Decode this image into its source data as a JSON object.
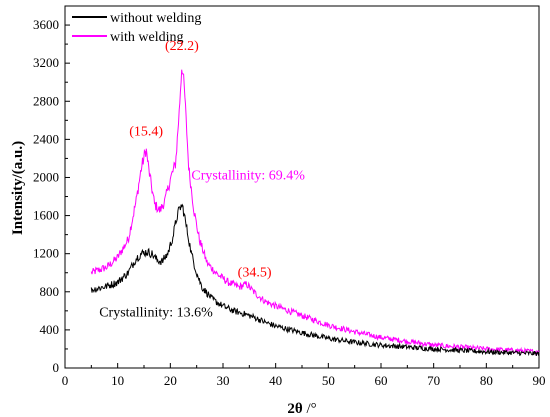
{
  "chart_data": {
    "type": "line",
    "xlabel_main": "2θ",
    "xlabel_unit": " /°",
    "ylabel": "Intensity/(a.u.)",
    "xlim": [
      0,
      90
    ],
    "ylim": [
      0,
      3800
    ],
    "xticks": [
      0,
      10,
      20,
      30,
      40,
      50,
      60,
      70,
      80,
      90
    ],
    "yticks": [
      0,
      400,
      800,
      1200,
      1600,
      2000,
      2400,
      2800,
      3200,
      3600
    ],
    "grid": false,
    "legend_position": "top-left",
    "colors": {
      "without": "#000000",
      "with": "#ff00ff",
      "annotation": "#ff0000"
    },
    "series": [
      {
        "name": "without welding",
        "color": "#000000",
        "x": [
          5,
          8,
          10,
          12,
          13.5,
          14.5,
          15.5,
          16.5,
          17.5,
          18.5,
          19.5,
          20.5,
          21.3,
          22,
          22.4,
          23,
          24,
          25,
          26,
          28,
          30,
          32,
          34.5,
          36,
          38,
          40,
          45,
          50,
          55,
          60,
          70,
          80,
          90
        ],
        "y": [
          820,
          860,
          900,
          1000,
          1150,
          1200,
          1220,
          1200,
          1130,
          1120,
          1200,
          1380,
          1600,
          1700,
          1680,
          1500,
          1200,
          1000,
          850,
          720,
          650,
          600,
          560,
          530,
          480,
          440,
          370,
          310,
          270,
          240,
          200,
          170,
          150
        ]
      },
      {
        "name": "with welding",
        "color": "#ff00ff",
        "x": [
          5,
          8,
          10,
          12,
          13.5,
          14.5,
          15.4,
          16,
          17,
          18,
          19,
          20,
          21,
          21.7,
          22.2,
          22.7,
          23.5,
          24.5,
          25.5,
          27,
          29,
          31,
          33,
          34.5,
          36,
          38,
          40,
          42,
          45,
          50,
          55,
          60,
          70,
          80,
          90
        ],
        "y": [
          1000,
          1060,
          1160,
          1350,
          1750,
          2100,
          2300,
          2050,
          1720,
          1650,
          1760,
          1980,
          2150,
          2700,
          3200,
          2900,
          2100,
          1650,
          1350,
          1100,
          980,
          900,
          850,
          880,
          790,
          700,
          650,
          610,
          550,
          450,
          380,
          320,
          240,
          200,
          170
        ]
      }
    ],
    "annotations": [
      {
        "text": "(15.4)",
        "x": 15.4,
        "y": 2440,
        "color": "#ff0000"
      },
      {
        "text": "(22.2)",
        "x": 22.2,
        "y": 3340,
        "color": "#ff0000"
      },
      {
        "text": "(34.5)",
        "x": 36,
        "y": 960,
        "color": "#ff0000"
      },
      {
        "text": "Crystallinity: 69.4%",
        "x": 24,
        "y": 1980,
        "color": "#ff00ff"
      },
      {
        "text": "Crystallinity: 13.6%",
        "x": 6.5,
        "y": 540,
        "color": "#000000"
      }
    ]
  }
}
